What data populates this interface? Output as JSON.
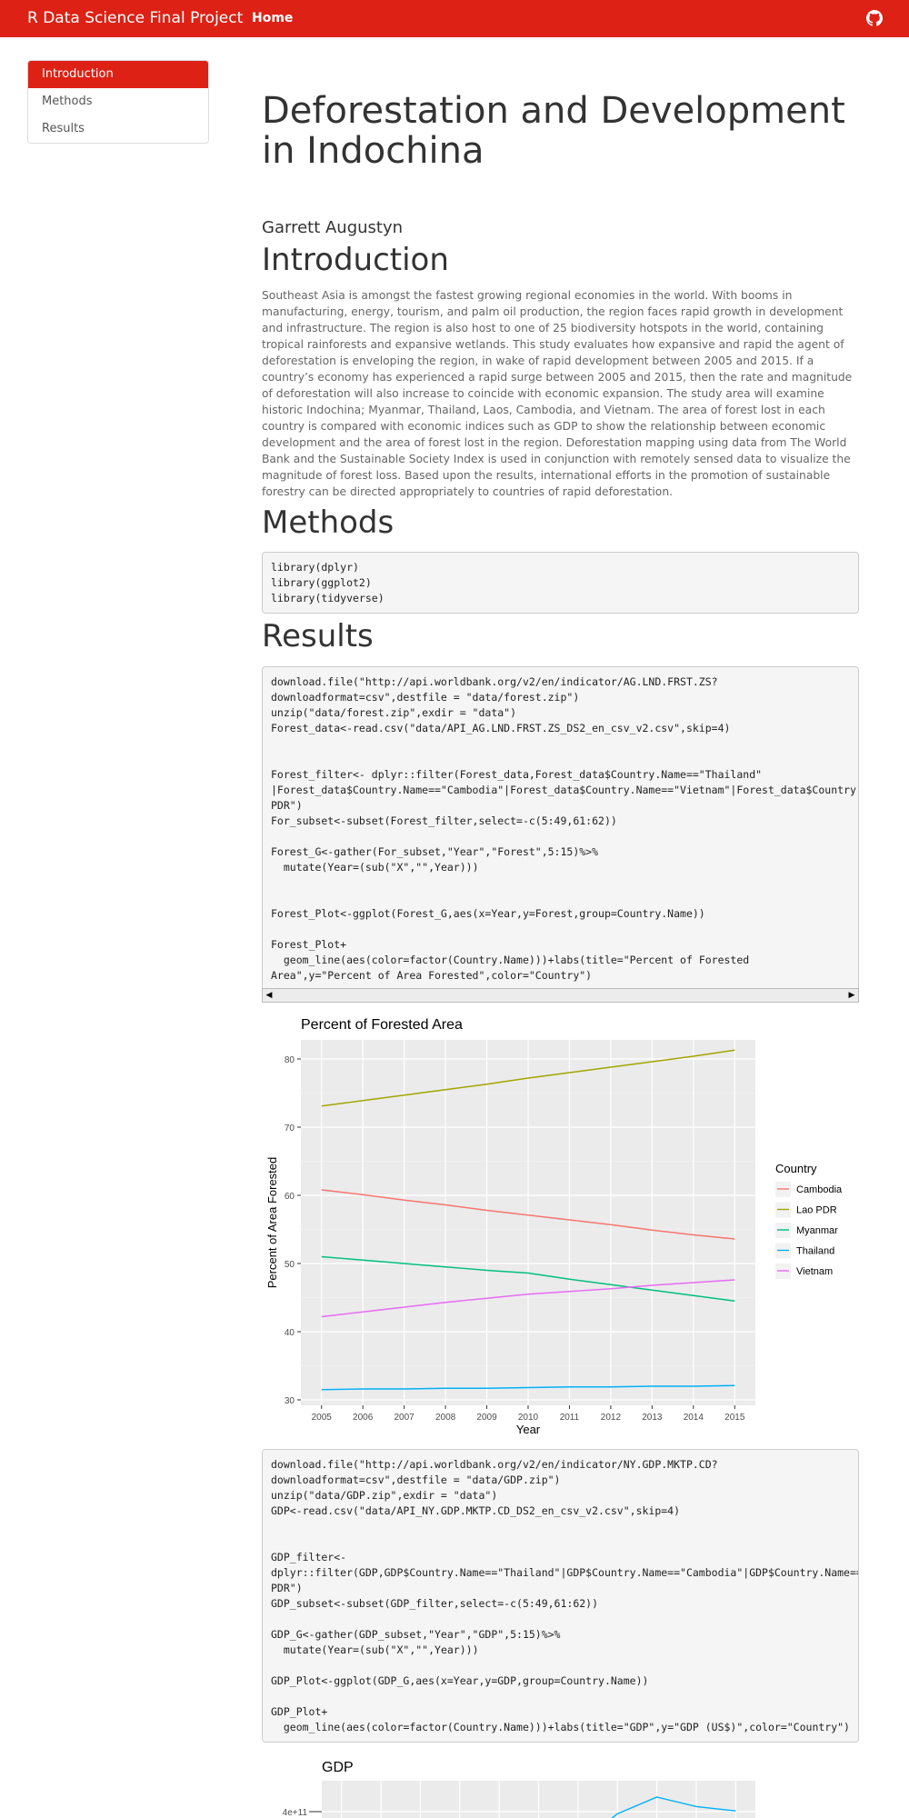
{
  "navbar": {
    "brand": "R Data Science Final Project",
    "home": "Home",
    "github_icon": "github-icon"
  },
  "toc": {
    "items": [
      "Introduction",
      "Methods",
      "Results"
    ]
  },
  "page": {
    "title": "Deforestation and Development in Indochina",
    "author": "Garrett Augustyn"
  },
  "sections": {
    "intro_heading": "Introduction",
    "intro_text": "Southeast Asia is amongst the fastest growing regional economies in the world. With booms in manufacturing, energy, tourism, and palm oil production, the region faces rapid growth in development and infrastructure. The region is also host to one of 25 biodiversity hotspots in the world, containing tropical rainforests and expansive wetlands. This study evaluates how expansive and rapid the agent of deforestation is enveloping the region, in wake of rapid development between 2005 and 2015. If a country’s economy has experienced a rapid surge between 2005 and 2015, then the rate and magnitude of deforestation will also increase to coincide with economic expansion. The study area will examine historic Indochina; Myanmar, Thailand, Laos, Cambodia, and Vietnam. The area of forest lost in each country is compared with economic indices such as GDP to show the relationship between economic development and the area of forest lost in the region. Deforestation mapping using data from The World Bank and the Sustainable Society Index is used in conjunction with remotely sensed data to visualize the magnitude of forest loss. Based upon the results, international efforts in the promotion of sustainable forestry can be directed appropriately to countries of rapid deforestation.",
    "methods_heading": "Methods",
    "results_heading": "Results"
  },
  "code": {
    "methods": "library(dplyr)\nlibrary(ggplot2)\nlibrary(tidyverse)",
    "forest": "download.file(\"http://api.worldbank.org/v2/en/indicator/AG.LND.FRST.ZS?downloadformat=csv\",destfile = \"data/forest.zip\")\nunzip(\"data/forest.zip\",exdir = \"data\")\nForest_data<-read.csv(\"data/API_AG.LND.FRST.ZS_DS2_en_csv_v2.csv\",skip=4)\n\n\nForest_filter<- dplyr::filter(Forest_data,Forest_data$Country.Name==\"Thailand\" |Forest_data$Country.Name==\"Cambodia\"|Forest_data$Country.Name==\"Vietnam\"|Forest_data$Country.Name==\"Myanmar\"|Forest_data$Country.Name==\"Lao PDR\")\nFor_subset<-subset(Forest_filter,select=-c(5:49,61:62))\n\nForest_G<-gather(For_subset,\"Year\",\"Forest\",5:15)%>%\n  mutate(Year=(sub(\"X\",\"\",Year)))\n\n\nForest_Plot<-ggplot(Forest_G,aes(x=Year,y=Forest,group=Country.Name))\n\nForest_Plot+\n  geom_line(aes(color=factor(Country.Name)))+labs(title=\"Percent of Forested Area\",y=\"Percent of Area Forested\",color=\"Country\")",
    "gdp": "download.file(\"http://api.worldbank.org/v2/en/indicator/NY.GDP.MKTP.CD?downloadformat=csv\",destfile = \"data/GDP.zip\")\nunzip(\"data/GDP.zip\",exdir = \"data\")\nGDP<-read.csv(\"data/API_NY.GDP.MKTP.CD_DS2_en_csv_v2.csv\",skip=4)\n\n\nGDP_filter<-dplyr::filter(GDP,GDP$Country.Name==\"Thailand\"|GDP$Country.Name==\"Cambodia\"|GDP$Country.Name==\"Vietnam\"|GDP$Country.Name==\"Myanmar\"|GDP$Country.Name==\"Lao PDR\")\nGDP_subset<-subset(GDP_filter,select=-c(5:49,61:62))\n\nGDP_G<-gather(GDP_subset,\"Year\",\"GDP\",5:15)%>%\n  mutate(Year=(sub(\"X\",\"\",Year)))\n\nGDP_Plot<-ggplot(GDP_G,aes(x=Year,y=GDP,group=Country.Name))\n\nGDP_Plot+\n  geom_line(aes(color=factor(Country.Name)))+labs(title=\"GDP\",y=\"GDP (US$)\",color=\"Country\")"
  },
  "scrollbar": {
    "left_arrow": "◀",
    "right_arrow": "▶"
  },
  "chart_data": [
    {
      "type": "line",
      "title": "Percent of Forested Area",
      "xlabel": "Year",
      "ylabel": "Percent of Area Forested",
      "legend_title": "Country",
      "x": [
        2005,
        2006,
        2007,
        2008,
        2009,
        2010,
        2011,
        2012,
        2013,
        2014,
        2015
      ],
      "yticks": [
        30,
        40,
        50,
        60,
        70,
        80
      ],
      "ylim": [
        29.2,
        82.8
      ],
      "series": [
        {
          "name": "Cambodia",
          "color": "#F8766D",
          "values": [
            60.8,
            60.1,
            59.3,
            58.6,
            57.8,
            57.1,
            56.4,
            55.7,
            54.9,
            54.2,
            53.6
          ]
        },
        {
          "name": "Lao PDR",
          "color": "#A3A500",
          "values": [
            73.1,
            73.9,
            74.7,
            75.5,
            76.3,
            77.2,
            78.0,
            78.8,
            79.6,
            80.4,
            81.3
          ]
        },
        {
          "name": "Myanmar",
          "color": "#00BF7D",
          "values": [
            51.0,
            50.5,
            50.0,
            49.5,
            49.0,
            48.6,
            47.7,
            46.9,
            46.1,
            45.3,
            44.5
          ]
        },
        {
          "name": "Thailand",
          "color": "#00B0F6",
          "values": [
            31.5,
            31.6,
            31.6,
            31.7,
            31.7,
            31.8,
            31.9,
            31.9,
            32.0,
            32.0,
            32.1
          ]
        },
        {
          "name": "Vietnam",
          "color": "#E76BF3",
          "values": [
            42.2,
            42.9,
            43.6,
            44.3,
            44.9,
            45.5,
            45.9,
            46.3,
            46.8,
            47.2,
            47.6
          ]
        }
      ]
    },
    {
      "type": "line",
      "title": "GDP",
      "yticks_labels": [
        "4e+11"
      ],
      "series": [
        {
          "name": "Thailand",
          "color": "#00B0F6",
          "values": [
            null,
            null,
            null,
            null,
            null,
            null,
            null,
            397000000000.0,
            420000000000.0,
            407000000000.0,
            401000000000.0
          ]
        }
      ]
    }
  ]
}
